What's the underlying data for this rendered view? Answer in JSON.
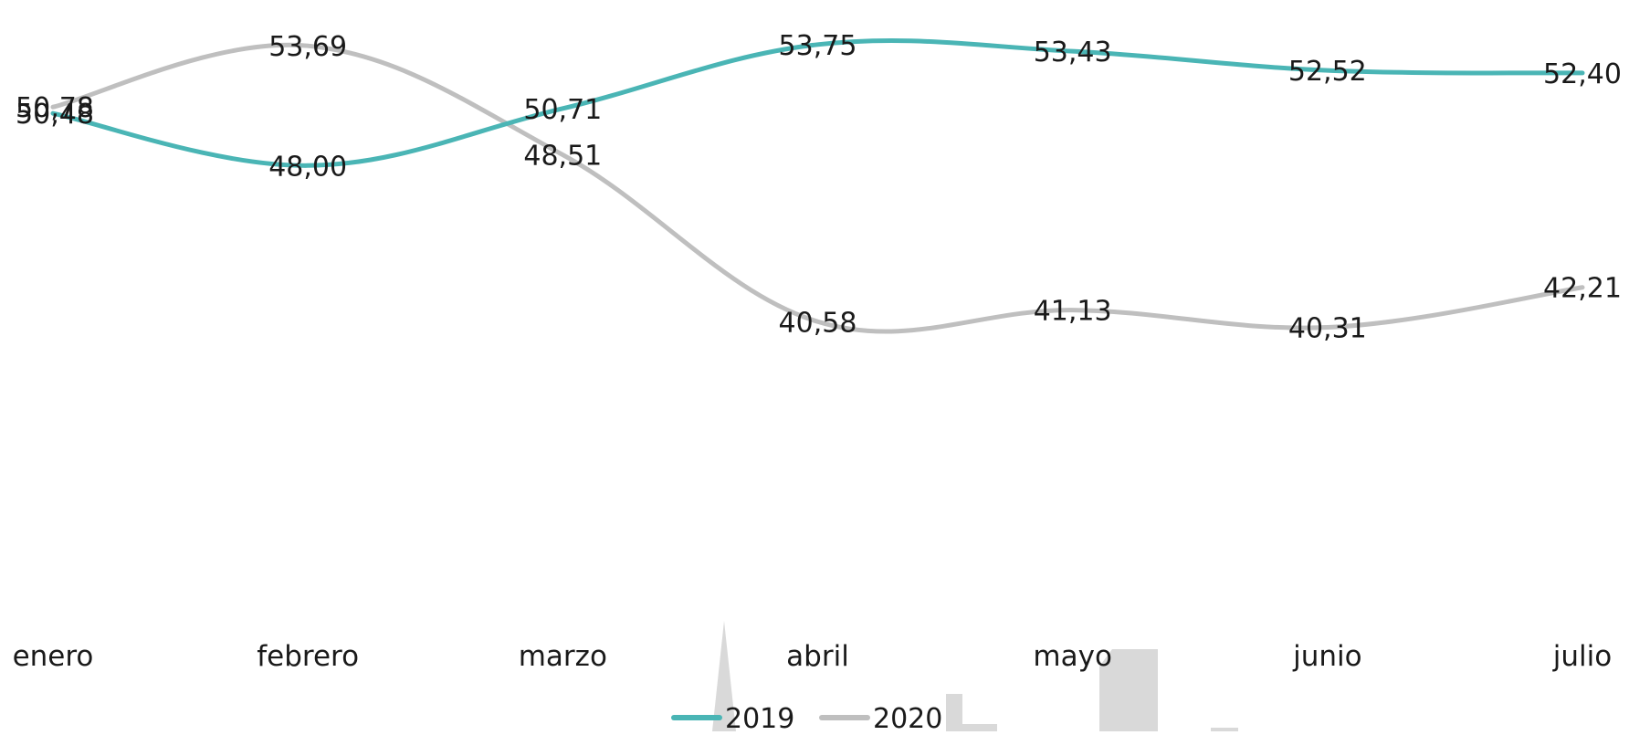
{
  "chart_data": {
    "type": "line",
    "smooth": true,
    "title": "",
    "xlabel": "",
    "ylabel": "",
    "categories": [
      "enero",
      "febrero",
      "marzo",
      "abril",
      "mayo",
      "junio",
      "julio"
    ],
    "series": [
      {
        "name": "2019",
        "color": "#4ab5b5",
        "values": [
          50.48,
          48.0,
          50.71,
          53.75,
          53.43,
          52.52,
          52.4
        ],
        "labels": [
          "50,48",
          "48,00",
          "50,71",
          "53,75",
          "53,43",
          "52,52",
          "52,40"
        ]
      },
      {
        "name": "2020",
        "color": "#bfbfbf",
        "values": [
          50.78,
          53.69,
          48.51,
          40.58,
          41.13,
          40.31,
          42.21
        ],
        "labels": [
          "50,78",
          "53,69",
          "48,51",
          "40,58",
          "41,13",
          "40,31",
          "42,21"
        ]
      }
    ],
    "ylim": [
      32,
      55
    ],
    "y_axis_visible": false,
    "grid": false,
    "legend": "bottom-center"
  }
}
